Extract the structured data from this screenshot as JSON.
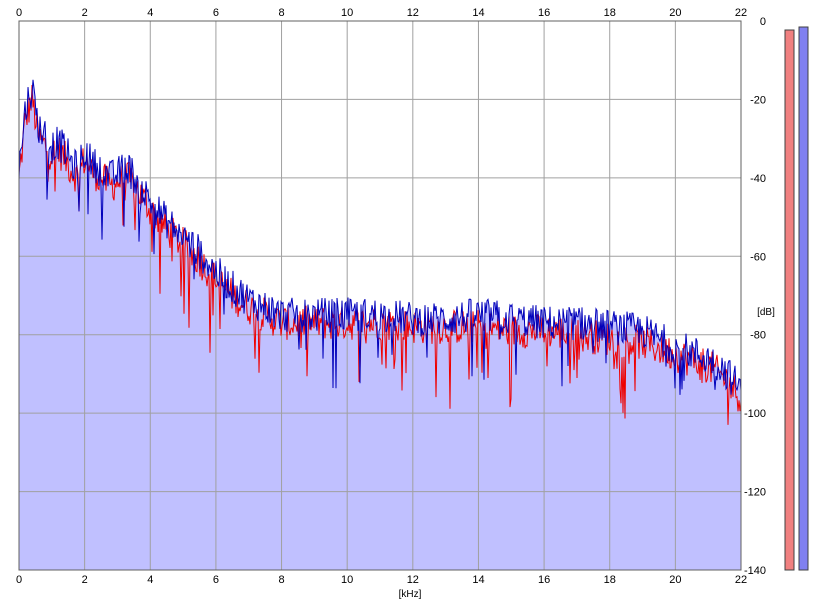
{
  "chart_data": {
    "type": "area",
    "xlabel": "[kHz]",
    "ylabel": "[dB]",
    "xlim": [
      0,
      22
    ],
    "ylim": [
      -140,
      0
    ],
    "x_ticks": [
      "0",
      "2",
      "4",
      "6",
      "8",
      "10",
      "12",
      "14",
      "16",
      "18",
      "20",
      "22"
    ],
    "y_ticks": [
      "0",
      "-20",
      "-40",
      "-60",
      "-80",
      "-100",
      "-120",
      "-140"
    ],
    "grid": true,
    "colors": {
      "fill": "#c0c0ff",
      "left_channel": "#ee0000",
      "right_channel": "#0000bb",
      "grid": "#a0a0a0",
      "meter_left": "#f08080",
      "meter_right": "#8080f0"
    },
    "series": [
      {
        "x": [
          0,
          0.2,
          0.4,
          0.6,
          0.8,
          1.0,
          1.2,
          1.4,
          1.6,
          1.8,
          2.0,
          2.2,
          2.5,
          2.8,
          3.0,
          3.3,
          3.6,
          4.0,
          4.5,
          5.0,
          5.5,
          6.0,
          6.5,
          7.0,
          7.5,
          8.0,
          9.0,
          10.0,
          11.0,
          12.0,
          13.0,
          14.0,
          15.0,
          16.0,
          17.0,
          18.0,
          19.0,
          20.0,
          21.0,
          21.5,
          22.0
        ],
        "values": [
          -40,
          -25,
          -20,
          -30,
          -32,
          -34,
          -33,
          -35,
          -38,
          -40,
          -35,
          -38,
          -40,
          -42,
          -41,
          -40,
          -43,
          -48,
          -53,
          -57,
          -61,
          -66,
          -70,
          -73,
          -75,
          -77,
          -77,
          -77,
          -77,
          -78,
          -78,
          -78,
          -79,
          -79,
          -80,
          -81,
          -82,
          -85,
          -88,
          -91,
          -96
        ]
      },
      {
        "x": [
          0,
          0.2,
          0.4,
          0.6,
          0.8,
          1.0,
          1.2,
          1.4,
          1.6,
          1.8,
          2.0,
          2.2,
          2.5,
          2.8,
          3.0,
          3.3,
          3.6,
          4.0,
          4.5,
          5.0,
          5.5,
          6.0,
          6.5,
          7.0,
          7.5,
          8.0,
          9.0,
          10.0,
          11.0,
          12.0,
          13.0,
          14.0,
          15.0,
          16.0,
          17.0,
          18.0,
          19.0,
          20.0,
          21.0,
          21.5,
          22.0
        ],
        "values": [
          -38,
          -22,
          -17,
          -27,
          -29,
          -32,
          -31,
          -33,
          -36,
          -38,
          -33,
          -36,
          -38,
          -40,
          -39,
          -37,
          -41,
          -46,
          -51,
          -55,
          -59,
          -64,
          -68,
          -71,
          -73,
          -75,
          -75,
          -75,
          -75,
          -76,
          -76,
          -75,
          -76,
          -77,
          -77,
          -78,
          -79,
          -83,
          -86,
          -89,
          -94
        ]
      }
    ]
  }
}
